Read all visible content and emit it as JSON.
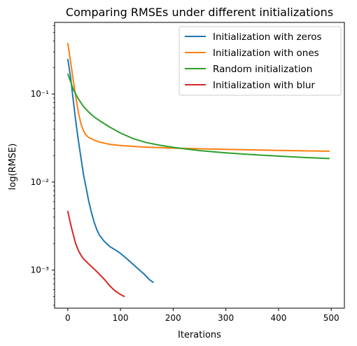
{
  "chart_data": {
    "type": "line",
    "title": "Comparing RMSEs under different initializations",
    "xlabel": "Iterations",
    "ylabel": "log(RMSE)",
    "xlim": [
      -25,
      525
    ],
    "ylim": [
      0.00037,
      0.65
    ],
    "yscale": "log",
    "xticks": [
      0,
      100,
      200,
      300,
      400,
      500
    ],
    "xtick_labels": [
      "0",
      "100",
      "200",
      "300",
      "400",
      "500"
    ],
    "yticks": [
      0.001,
      0.01,
      0.1
    ],
    "ytick_labels": [
      "10⁻³",
      "10⁻²",
      "10⁻¹"
    ],
    "grid": false,
    "legend_position": "top-right",
    "series": [
      {
        "name": "Initialization with zeros",
        "color": "#1f77b4",
        "points": [
          [
            0,
            0.25
          ],
          [
            5,
            0.16
          ],
          [
            10,
            0.09
          ],
          [
            15,
            0.05
          ],
          [
            20,
            0.03
          ],
          [
            25,
            0.019
          ],
          [
            30,
            0.012
          ],
          [
            35,
            0.0085
          ],
          [
            40,
            0.006
          ],
          [
            45,
            0.0045
          ],
          [
            50,
            0.0035
          ],
          [
            55,
            0.0029
          ],
          [
            60,
            0.0025
          ],
          [
            70,
            0.0021
          ],
          [
            80,
            0.00185
          ],
          [
            90,
            0.0017
          ],
          [
            100,
            0.00155
          ],
          [
            115,
            0.0013
          ],
          [
            130,
            0.00108
          ],
          [
            145,
            0.0009
          ],
          [
            155,
            0.00078
          ],
          [
            163,
            0.00072
          ]
        ]
      },
      {
        "name": "Initialization with ones",
        "color": "#ff7f0e",
        "points": [
          [
            0,
            0.38
          ],
          [
            5,
            0.24
          ],
          [
            10,
            0.15
          ],
          [
            15,
            0.095
          ],
          [
            20,
            0.062
          ],
          [
            25,
            0.046
          ],
          [
            30,
            0.038
          ],
          [
            35,
            0.034
          ],
          [
            40,
            0.032
          ],
          [
            50,
            0.03
          ],
          [
            60,
            0.0285
          ],
          [
            80,
            0.0268
          ],
          [
            100,
            0.026
          ],
          [
            125,
            0.0254
          ],
          [
            150,
            0.0249
          ],
          [
            200,
            0.0243
          ],
          [
            250,
            0.0239
          ],
          [
            300,
            0.0235
          ],
          [
            350,
            0.0232
          ],
          [
            400,
            0.0229
          ],
          [
            450,
            0.0226
          ],
          [
            497,
            0.0224
          ]
        ]
      },
      {
        "name": "Random initialization",
        "color": "#2ca02c",
        "points": [
          [
            0,
            0.17
          ],
          [
            5,
            0.14
          ],
          [
            10,
            0.115
          ],
          [
            15,
            0.1
          ],
          [
            20,
            0.088
          ],
          [
            30,
            0.072
          ],
          [
            40,
            0.062
          ],
          [
            50,
            0.055
          ],
          [
            60,
            0.05
          ],
          [
            80,
            0.042
          ],
          [
            100,
            0.036
          ],
          [
            125,
            0.031
          ],
          [
            150,
            0.028
          ],
          [
            175,
            0.0262
          ],
          [
            200,
            0.0248
          ],
          [
            250,
            0.0228
          ],
          [
            300,
            0.0215
          ],
          [
            350,
            0.0205
          ],
          [
            400,
            0.0197
          ],
          [
            450,
            0.019
          ],
          [
            497,
            0.0185
          ]
        ]
      },
      {
        "name": "Initialization with blur",
        "color": "#d62728",
        "points": [
          [
            0,
            0.0047
          ],
          [
            5,
            0.0034
          ],
          [
            10,
            0.0026
          ],
          [
            15,
            0.002
          ],
          [
            20,
            0.00168
          ],
          [
            25,
            0.00148
          ],
          [
            30,
            0.00134
          ],
          [
            40,
            0.00117
          ],
          [
            50,
            0.00103
          ],
          [
            60,
            0.0009
          ],
          [
            70,
            0.00078
          ],
          [
            80,
            0.00066
          ],
          [
            90,
            0.00058
          ],
          [
            100,
            0.00053
          ],
          [
            108,
            0.0005
          ]
        ]
      }
    ]
  }
}
